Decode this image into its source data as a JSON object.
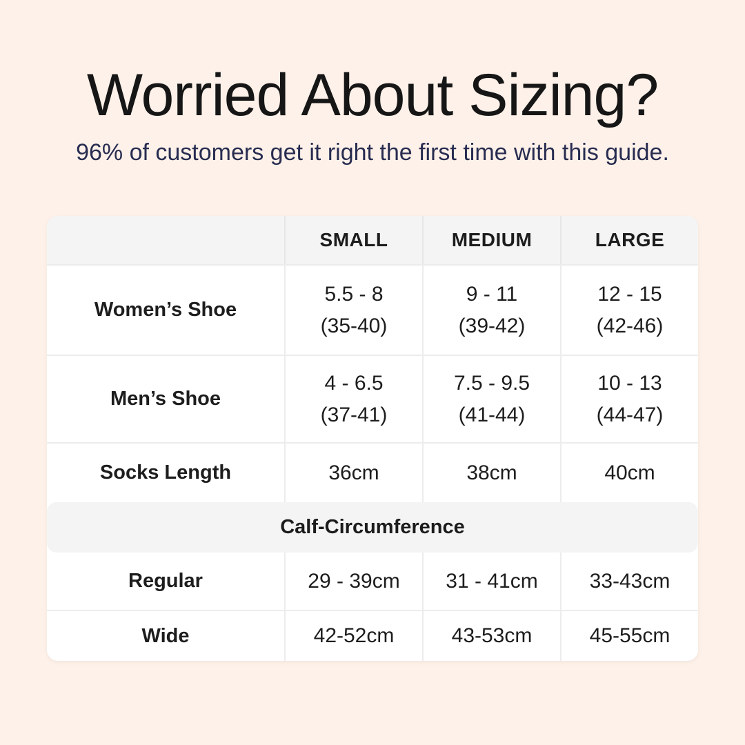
{
  "colors": {
    "background": "#fdf1e9",
    "card": "#ffffff",
    "band_gray": "#f4f4f4",
    "divider": "#ececec",
    "title_text": "#161616",
    "subtitle_text": "#272c50",
    "table_text": "#1d1d1d"
  },
  "header": {
    "title": "Worried About Sizing?",
    "subtitle": "96% of customers get it right the first time with this guide."
  },
  "table": {
    "columns": [
      "SMALL",
      "MEDIUM",
      "LARGE"
    ],
    "rows": [
      {
        "label": "Women’s Shoe",
        "values": [
          {
            "line1": "5.5 - 8",
            "line2": "(35-40)"
          },
          {
            "line1": "9 - 11",
            "line2": "(39-42)"
          },
          {
            "line1": "12 - 15",
            "line2": "(42-46)"
          }
        ]
      },
      {
        "label": "Men’s Shoe",
        "values": [
          {
            "line1": "4 - 6.5",
            "line2": "(37-41)"
          },
          {
            "line1": "7.5 - 9.5",
            "line2": "(41-44)"
          },
          {
            "line1": "10 - 13",
            "line2": "(44-47)"
          }
        ]
      },
      {
        "label": "Socks Length",
        "values": [
          {
            "line1": "36cm"
          },
          {
            "line1": "38cm"
          },
          {
            "line1": "40cm"
          }
        ]
      }
    ],
    "section_header": "Calf-Circumference",
    "section_rows": [
      {
        "label": "Regular",
        "values": [
          "29 - 39cm",
          "31 - 41cm",
          "33-43cm"
        ]
      },
      {
        "label": "Wide",
        "values": [
          "42-52cm",
          "43-53cm",
          "45-55cm"
        ]
      }
    ]
  }
}
